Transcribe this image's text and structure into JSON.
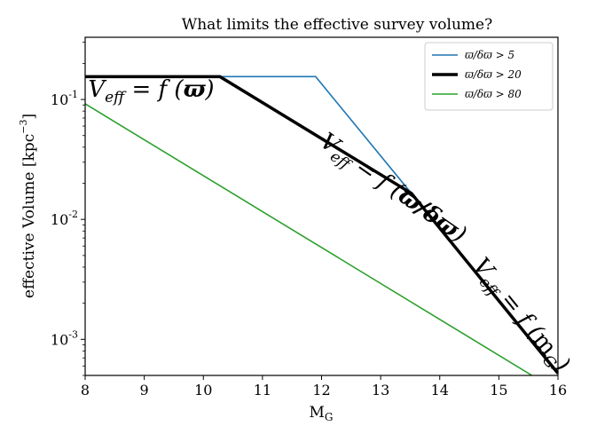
{
  "chart_data": {
    "type": "line",
    "title": "What limits the effective survey volume?",
    "xlabel": "M_G",
    "ylabel": "effective Volume [kpc^-3]",
    "xlim": [
      8,
      16
    ],
    "ylim": [
      0.0005,
      0.33
    ],
    "yscale": "log",
    "x_ticks": [
      8,
      9,
      10,
      11,
      12,
      13,
      14,
      15,
      16
    ],
    "y_ticks": [
      {
        "value": 0.001,
        "base": "10",
        "exp": "-3"
      },
      {
        "value": 0.01,
        "base": "10",
        "exp": "-2"
      },
      {
        "value": 0.1,
        "base": "10",
        "exp": "-1"
      }
    ],
    "legend_position": "top-right",
    "series": [
      {
        "name": "ϖ/δϖ > 5",
        "color": "#1f77b4",
        "width": 1.6,
        "x": [
          8,
          11.9,
          13.52
        ],
        "y": [
          0.155,
          0.155,
          0.0165
        ]
      },
      {
        "name": "ϖ/δϖ > 20",
        "color": "#000000",
        "width": 3.5,
        "x": [
          8,
          10.28,
          13.52,
          16
        ],
        "y": [
          0.155,
          0.155,
          0.0165,
          0.00052
        ]
      },
      {
        "name": "ϖ/δϖ > 80",
        "color": "#2ca02c",
        "width": 1.6,
        "x": [
          8,
          15.56
        ],
        "y": [
          0.092,
          0.0005
        ]
      }
    ],
    "annotations": [
      {
        "text": "V_eff = f (ϖ)",
        "x": 8.05,
        "y": 0.105,
        "rotation": 0
      },
      {
        "text": "V_eff = f (ϖ/δϖ)",
        "x": 11.95,
        "y": 0.042,
        "rotation": 35
      },
      {
        "text": "V_eff = f (m_G)",
        "x": 14.55,
        "y": 0.0041,
        "rotation": 51
      }
    ]
  }
}
